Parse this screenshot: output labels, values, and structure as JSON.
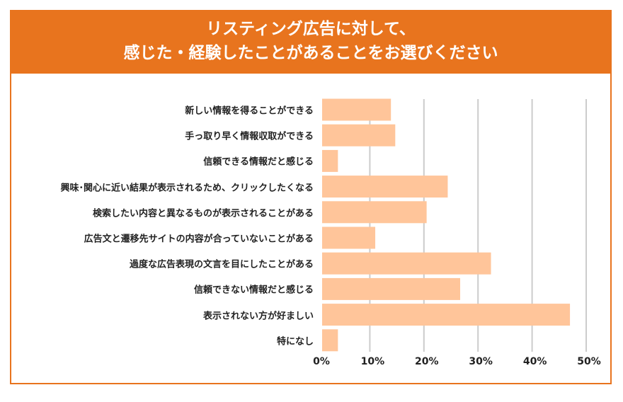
{
  "title": {
    "line1": "リスティング広告に対して、",
    "line2": "感じた・経験したことがあることをお選びください"
  },
  "colors": {
    "accent": "#E8741E",
    "bar": "#FFC59A",
    "grid": "#CCCCCC"
  },
  "chart_data": {
    "type": "bar",
    "orientation": "horizontal",
    "title": "リスティング広告に対して、感じた・経験したことがあることをお選びください",
    "categories": [
      "新しい情報を得ることができる",
      "手っ取り早く情報収取ができる",
      "信頼できる情報だと感じる",
      "興味･関心に近い結果が表示されるため、クリックしたくなる",
      "検索したい内容と異なるものが表示されることがある",
      "広告文と遷移先サイトの内容が合っていないことがある",
      "過度な広告表現の文言を目にしたことがある",
      "信頼できない情報だと感じる",
      "表示されない方が好ましい",
      "特になし"
    ],
    "values": [
      13.9,
      14.7,
      4.1,
      24.4,
      20.5,
      11.0,
      32.4,
      26.7,
      47.0,
      4.1
    ],
    "unit": "%",
    "xlim": [
      0,
      50
    ],
    "xticks": [
      "0%",
      "10%",
      "20%",
      "30%",
      "40%",
      "50%"
    ],
    "grid": true,
    "xlabel": "",
    "ylabel": ""
  }
}
